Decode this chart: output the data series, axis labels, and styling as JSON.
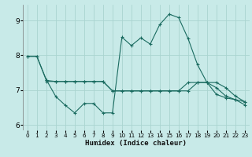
{
  "bg_color": "#c8eae8",
  "grid_color": "#aad4d0",
  "line_color": "#1a6b60",
  "xlabel": "Humidex (Indice chaleur)",
  "xlim": [
    -0.5,
    23.5
  ],
  "ylim": [
    5.85,
    9.45
  ],
  "yticks": [
    6,
    7,
    8,
    9
  ],
  "xticks": [
    0,
    1,
    2,
    3,
    4,
    5,
    6,
    7,
    8,
    9,
    10,
    11,
    12,
    13,
    14,
    15,
    16,
    17,
    18,
    19,
    20,
    21,
    22,
    23
  ],
  "s1_x": [
    0,
    1,
    2,
    3,
    4,
    5,
    6,
    7,
    8,
    9,
    10,
    11,
    12,
    13,
    14,
    15,
    16,
    17,
    18,
    19,
    20,
    21,
    22,
    23
  ],
  "s1_y": [
    7.97,
    7.97,
    7.3,
    6.82,
    6.57,
    6.35,
    6.62,
    6.62,
    6.35,
    6.35,
    8.52,
    8.28,
    8.5,
    8.32,
    8.88,
    9.18,
    9.08,
    8.48,
    7.73,
    7.22,
    6.88,
    6.78,
    6.73,
    6.58
  ],
  "s2_x": [
    0,
    1,
    2,
    3,
    4,
    5,
    6,
    7,
    8,
    9,
    10,
    11,
    12,
    13,
    14,
    15,
    16,
    17,
    18,
    19,
    20,
    21,
    22,
    23
  ],
  "s2_y": [
    7.97,
    7.97,
    7.28,
    7.25,
    7.25,
    7.25,
    7.25,
    7.25,
    7.25,
    6.98,
    6.98,
    6.98,
    6.98,
    6.98,
    6.98,
    6.98,
    6.98,
    6.98,
    7.22,
    7.22,
    7.22,
    7.07,
    6.83,
    6.67
  ],
  "s3_x": [
    2,
    3,
    4,
    5,
    6,
    7,
    8,
    9,
    10,
    11,
    12,
    13,
    14,
    15,
    16,
    17,
    18,
    19,
    20,
    21,
    22,
    23
  ],
  "s3_y": [
    7.25,
    7.25,
    7.25,
    7.25,
    7.25,
    7.25,
    7.25,
    6.98,
    6.98,
    6.98,
    6.98,
    6.98,
    6.98,
    6.98,
    6.98,
    7.22,
    7.22,
    7.22,
    7.07,
    6.83,
    6.73,
    6.67
  ]
}
